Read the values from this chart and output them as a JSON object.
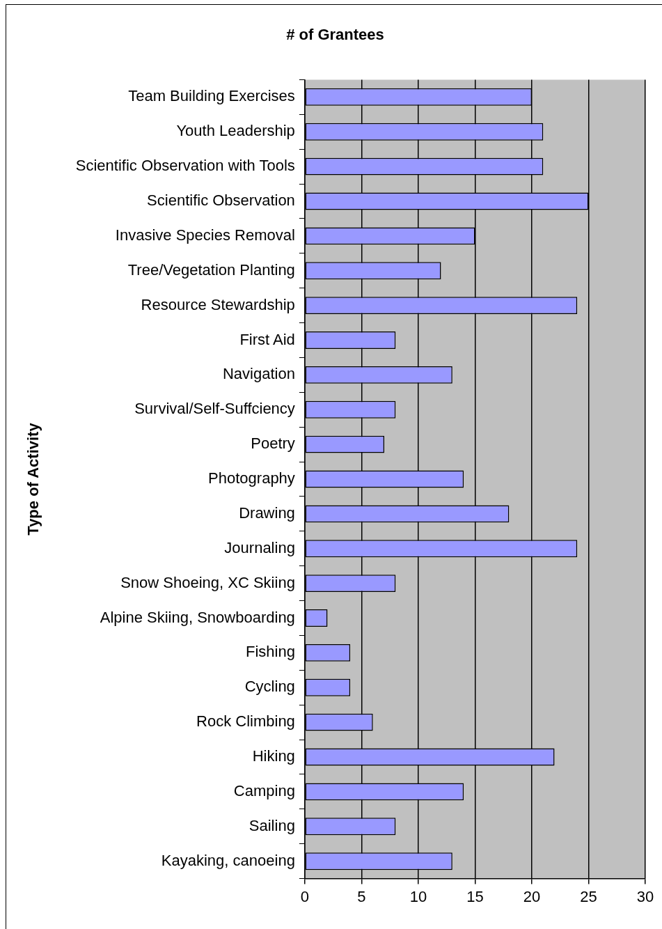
{
  "chart_data": {
    "type": "bar",
    "orientation": "horizontal",
    "title": "# of Grantees",
    "ylabel": "Type of Activity",
    "categories": [
      "Team Building Exercises",
      "Youth Leadership",
      "Scientific Observation with Tools",
      "Scientific Observation",
      "Invasive Species Removal",
      "Tree/Vegetation Planting",
      "Resource Stewardship",
      "First Aid",
      "Navigation",
      "Survival/Self-Suffciency",
      "Poetry",
      "Photography",
      "Drawing",
      "Journaling",
      "Snow Shoeing, XC Skiing",
      "Alpine Skiing, Snowboarding",
      "Fishing",
      "Cycling",
      "Rock Climbing",
      "Hiking",
      "Camping",
      "Sailing",
      "Kayaking, canoeing"
    ],
    "values": [
      20,
      21,
      21,
      25,
      15,
      12,
      24,
      8,
      13,
      8,
      7,
      14,
      18,
      24,
      8,
      2,
      4,
      4,
      6,
      22,
      14,
      8,
      13
    ],
    "color": "#9999ff",
    "xlim": [
      0,
      30
    ],
    "xticks": [
      0,
      5,
      10,
      15,
      20,
      25,
      30
    ],
    "grid": "x",
    "legend": false
  }
}
